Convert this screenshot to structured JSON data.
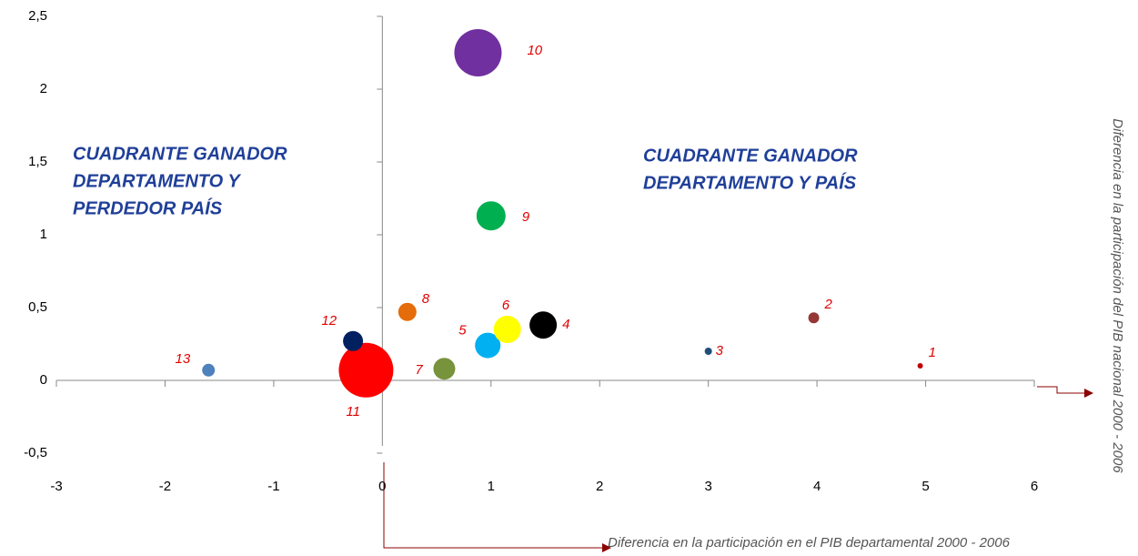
{
  "chart_data": {
    "type": "bubble",
    "x_label": "Diferencia en la participación en el PIB departamental 2000 - 2006",
    "y_label": "Diferencia en la participación del PIB nacional 2000 - 2006",
    "annotations": [
      "CUADRANTE GANADOR",
      "DEPARTAMENTO Y",
      "PERDEDOR PAÍS",
      "CUADRANTE GANADOR",
      "DEPARTAMENTO Y PAÍS"
    ],
    "labels": [
      "1",
      "2",
      "3",
      "4",
      "5",
      "6",
      "7",
      "8",
      "9",
      "10",
      "11",
      "12",
      "13"
    ],
    "x": [
      4.95,
      3.97,
      3.0,
      1.48,
      0.97,
      1.15,
      0.57,
      0.23,
      1.0,
      0.88,
      -0.15,
      -0.27,
      -1.6
    ],
    "y": [
      0.1,
      0.43,
      0.2,
      0.38,
      0.24,
      0.35,
      0.08,
      0.47,
      1.13,
      2.25,
      0.07,
      0.27,
      0.07
    ],
    "sizes": [
      9,
      36,
      16,
      225,
      196,
      225,
      144,
      100,
      256,
      676,
      900,
      121,
      49
    ],
    "colors": [
      "#c00000",
      "#953735",
      "#1f4e79",
      "#000000",
      "#00b0f0",
      "#ffff00",
      "#77933c",
      "#e46c0a",
      "#00b050",
      "#7030a0",
      "#ff0000",
      "#002060",
      "#4f81bd"
    ],
    "xlim": [
      -3,
      6
    ],
    "xticks": [
      -3,
      -2,
      -1,
      0,
      1,
      2,
      3,
      4,
      5,
      6
    ],
    "ylim": [
      -0.5,
      2.5
    ],
    "yticks": [
      {
        "value": -0.5,
        "label": "-0,5"
      },
      0,
      {
        "value": 0.5,
        "label": "0,5"
      },
      1,
      {
        "value": 1.5,
        "label": "1,5"
      },
      2,
      {
        "value": 2.5,
        "label": "2,5"
      }
    ]
  }
}
